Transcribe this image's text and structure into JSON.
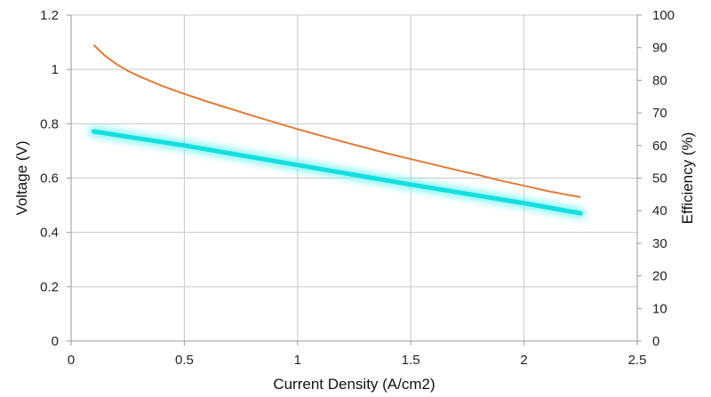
{
  "chart_data": {
    "type": "line",
    "title": "",
    "xlabel": "Current Density (A/cm2)",
    "ylabel": "Voltage (V)",
    "y2label": "Efficiency (%)",
    "xlim": [
      0,
      2.5
    ],
    "ylim": [
      0,
      1.2
    ],
    "y2lim": [
      0,
      100
    ],
    "x_ticks": [
      "0",
      "0.5",
      "1",
      "1.5",
      "2",
      "2.5"
    ],
    "y_ticks": [
      "0",
      "0.2",
      "0.4",
      "0.6",
      "0.8",
      "1",
      "1.2"
    ],
    "y2_ticks": [
      "0",
      "10",
      "20",
      "30",
      "40",
      "50",
      "60",
      "70",
      "80",
      "90",
      "100"
    ],
    "grid": true,
    "legend": "none",
    "series": [
      {
        "axis": "left",
        "color": "#e07b39",
        "x": [
          0.1,
          0.15,
          0.2,
          0.25,
          0.3,
          0.4,
          0.5,
          0.6,
          0.7,
          0.8,
          0.9,
          1.0,
          1.1,
          1.2,
          1.3,
          1.4,
          1.5,
          1.6,
          1.7,
          1.8,
          1.9,
          2.0,
          2.1,
          2.2,
          2.25
        ],
        "values": [
          1.09,
          1.05,
          1.02,
          0.995,
          0.975,
          0.94,
          0.91,
          0.882,
          0.856,
          0.83,
          0.805,
          0.78,
          0.757,
          0.734,
          0.712,
          0.69,
          0.67,
          0.65,
          0.63,
          0.611,
          0.59,
          0.572,
          0.553,
          0.537,
          0.53
        ]
      },
      {
        "axis": "right",
        "color": "#14dede",
        "glow": "#7ff3f3",
        "x": [
          0.1,
          0.5,
          1.0,
          1.5,
          2.0,
          2.25
        ],
        "values": [
          64.3,
          60.0,
          54.0,
          48.0,
          42.3,
          39.2
        ]
      }
    ]
  }
}
